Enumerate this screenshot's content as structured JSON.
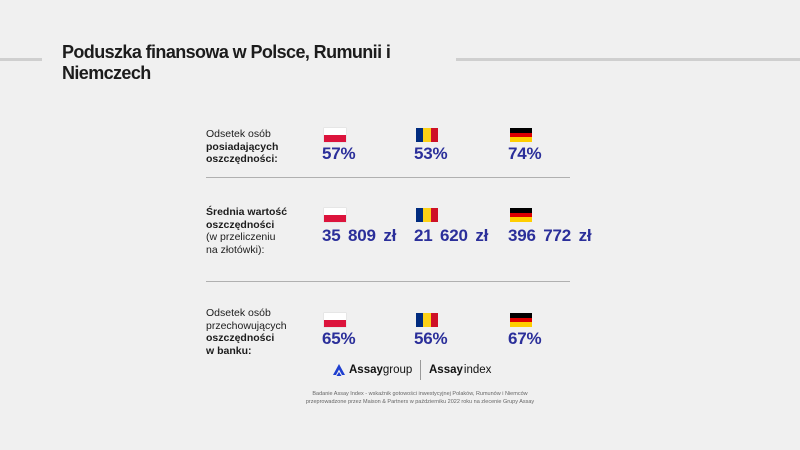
{
  "title": "Poduszka finansowa w Polsce, Rumunii i Niemczech",
  "rows": [
    {
      "label_lines": [
        {
          "text": "Odsetek osób",
          "bold": false
        },
        {
          "text": "posiadających",
          "bold": true
        },
        {
          "text": "oszczędności:",
          "bold": true
        }
      ],
      "values": {
        "poland": "57%",
        "romania": "53%",
        "germany": "74%"
      }
    },
    {
      "label_lines": [
        {
          "text": "Średnia wartość",
          "bold": true
        },
        {
          "text": "oszczędności",
          "bold": true
        },
        {
          "text": "(w przeliczeniu",
          "bold": false
        },
        {
          "text": "na złotówki):",
          "bold": false
        }
      ],
      "values": {
        "poland": "35 809 zł",
        "romania": "21 620 zł",
        "germany": "396 772 zł"
      }
    },
    {
      "label_lines": [
        {
          "text": "Odsetek osób",
          "bold": false
        },
        {
          "text": "przechowujących",
          "bold": false
        },
        {
          "text": "oszczędności",
          "bold": true
        },
        {
          "text": "w banku:",
          "bold": true
        }
      ],
      "values": {
        "poland": "65%",
        "romania": "56%",
        "germany": "67%"
      }
    }
  ],
  "logos": {
    "assay_group": {
      "strong": "Assay",
      "light": "group"
    },
    "assay_index": {
      "strong": "Assay",
      "light": "index"
    }
  },
  "footer": [
    "Badanie Assay Index - wskaźnik gotowości inwestycyjnej Polaków, Rumunów i Niemców",
    "przeprowadzone przez Maison & Partners w październiku 2022 roku na zlecenie Grupy Assay"
  ],
  "colors": {
    "value": "#2b2f9a",
    "background": "#f0f0f0"
  }
}
